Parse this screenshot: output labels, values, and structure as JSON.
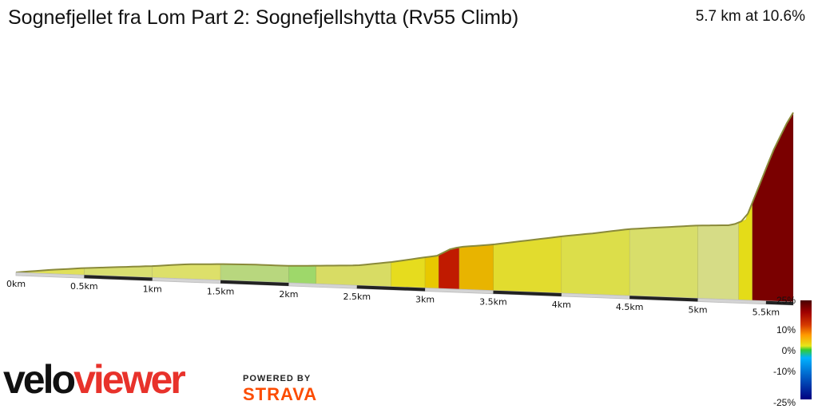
{
  "header": {
    "title": "Sognefjellet fra Lom Part 2: Sognefjellshytta (Rv55 Climb)",
    "summary": "5.7 km at 10.6%"
  },
  "legend": {
    "labels": [
      "25%",
      "10%",
      "0%",
      "-10%",
      "-25%"
    ]
  },
  "branding": {
    "velo": "velo",
    "viewer": "viewer",
    "powered_by": "POWERED BY",
    "strava": "STRAVA"
  },
  "chart_data": {
    "type": "area",
    "title": "Sognefjellet fra Lom Part 2: Sognefjellshytta (Rv55 Climb)",
    "distance_km": 5.7,
    "average_gradient_pct": 10.6,
    "x_tick_labels": [
      "0km",
      "0.5km",
      "1km",
      "1.5km",
      "2km",
      "2.5km",
      "3km",
      "3.5km",
      "4km",
      "4.5km",
      "5km",
      "5.5km"
    ],
    "x_ticks_km": [
      0,
      0.5,
      1,
      1.5,
      2,
      2.5,
      3,
      3.5,
      4,
      4.5,
      5,
      5.5
    ],
    "xlim": [
      0,
      5.7
    ],
    "profile": [
      {
        "km": 0.0,
        "elev": 0
      },
      {
        "km": 0.25,
        "elev": 5
      },
      {
        "km": 0.5,
        "elev": 9
      },
      {
        "km": 0.75,
        "elev": 12
      },
      {
        "km": 1.0,
        "elev": 15
      },
      {
        "km": 1.25,
        "elev": 19
      },
      {
        "km": 1.5,
        "elev": 21
      },
      {
        "km": 1.75,
        "elev": 22
      },
      {
        "km": 2.0,
        "elev": 22
      },
      {
        "km": 2.25,
        "elev": 24
      },
      {
        "km": 2.5,
        "elev": 26
      },
      {
        "km": 2.75,
        "elev": 32
      },
      {
        "km": 3.0,
        "elev": 40
      },
      {
        "km": 3.1,
        "elev": 43
      },
      {
        "km": 3.17,
        "elev": 51
      },
      {
        "km": 3.25,
        "elev": 55
      },
      {
        "km": 3.5,
        "elev": 60
      },
      {
        "km": 3.75,
        "elev": 67
      },
      {
        "km": 4.0,
        "elev": 74
      },
      {
        "km": 4.25,
        "elev": 80
      },
      {
        "km": 4.5,
        "elev": 87
      },
      {
        "km": 4.75,
        "elev": 91
      },
      {
        "km": 5.0,
        "elev": 95
      },
      {
        "km": 5.25,
        "elev": 97
      },
      {
        "km": 5.35,
        "elev": 105
      },
      {
        "km": 5.45,
        "elev": 150
      },
      {
        "km": 5.55,
        "elev": 195
      },
      {
        "km": 5.65,
        "elev": 232
      },
      {
        "km": 5.7,
        "elev": 247
      }
    ],
    "gradient_segments": [
      {
        "from_km": 0.0,
        "to_km": 0.5,
        "gradient_pct": 2,
        "color": "#e0e05a"
      },
      {
        "from_km": 0.5,
        "to_km": 1.0,
        "gradient_pct": 2,
        "color": "#d8de70"
      },
      {
        "from_km": 1.0,
        "to_km": 1.5,
        "gradient_pct": 2,
        "color": "#dde06a"
      },
      {
        "from_km": 1.5,
        "to_km": 2.0,
        "gradient_pct": 0,
        "color": "#b8d77e"
      },
      {
        "from_km": 2.0,
        "to_km": 2.2,
        "gradient_pct": -1,
        "color": "#9ed86a"
      },
      {
        "from_km": 2.2,
        "to_km": 2.75,
        "gradient_pct": 3,
        "color": "#d8dc64"
      },
      {
        "from_km": 2.75,
        "to_km": 3.0,
        "gradient_pct": 4,
        "color": "#e6dc1e"
      },
      {
        "from_km": 3.0,
        "to_km": 3.1,
        "gradient_pct": 6,
        "color": "#e8c800"
      },
      {
        "from_km": 3.1,
        "to_km": 3.25,
        "gradient_pct": 18,
        "color": "#c01a00"
      },
      {
        "from_km": 3.25,
        "to_km": 3.5,
        "gradient_pct": 4,
        "color": "#e8b400"
      },
      {
        "from_km": 3.5,
        "to_km": 4.0,
        "gradient_pct": 4,
        "color": "#e2dc2e"
      },
      {
        "from_km": 4.0,
        "to_km": 4.5,
        "gradient_pct": 3,
        "color": "#dcde4a"
      },
      {
        "from_km": 4.5,
        "to_km": 5.0,
        "gradient_pct": 2,
        "color": "#d8de6a"
      },
      {
        "from_km": 5.0,
        "to_km": 5.3,
        "gradient_pct": 2,
        "color": "#d6dc86"
      },
      {
        "from_km": 5.3,
        "to_km": 5.4,
        "gradient_pct": 6,
        "color": "#e4dc18"
      },
      {
        "from_km": 5.4,
        "to_km": 5.7,
        "gradient_pct": 25,
        "color": "#7a0000"
      }
    ],
    "legend_scale": {
      "max_pct": 25,
      "min_pct": -25
    }
  }
}
